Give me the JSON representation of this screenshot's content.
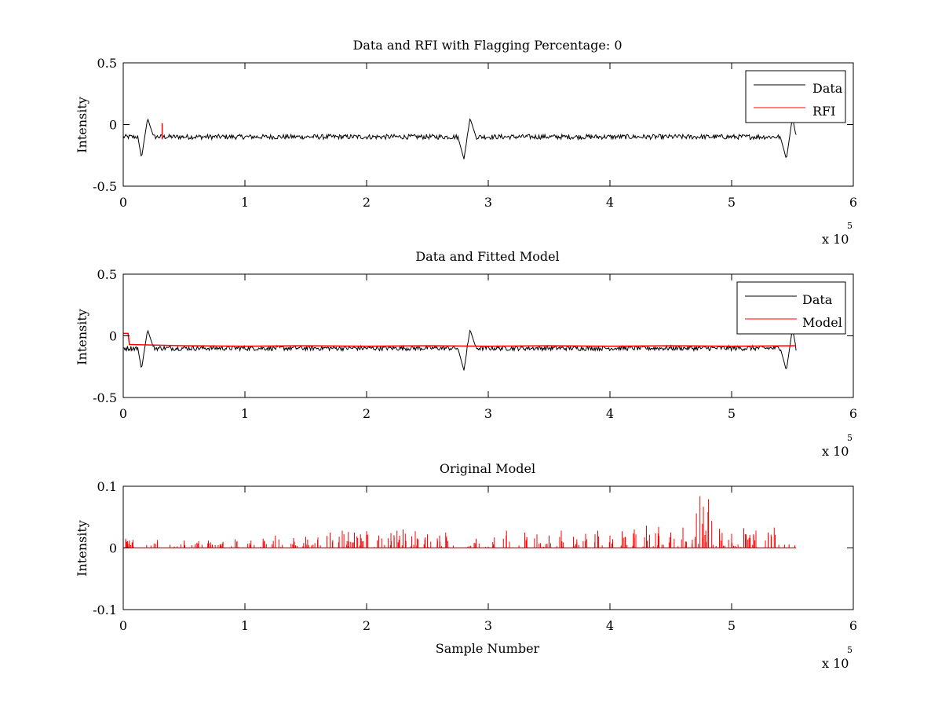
{
  "chart_data": [
    {
      "type": "line",
      "title": "Data and RFI with Flagging Percentage: 0",
      "xlabel": "",
      "ylabel": "Intensity",
      "xlim": [
        0,
        600000
      ],
      "ylim": [
        -0.5,
        0.5
      ],
      "x_ticks": [
        "0",
        "1",
        "2",
        "3",
        "4",
        "5",
        "6"
      ],
      "y_ticks": [
        "-0.5",
        "0",
        "0.5"
      ],
      "x_exponent": "x 10",
      "x_exponent_power": "5",
      "grid": false,
      "legend_position": "top-right",
      "legend": [
        {
          "name": "Data",
          "color": "#000000"
        },
        {
          "name": "RFI",
          "color": "#ff0000"
        }
      ],
      "series": [
        {
          "name": "Data",
          "color": "#000000",
          "baseline": -0.1,
          "noise_amplitude": 0.04,
          "x_end": 553000,
          "x": [
            0,
            12000,
            15000,
            20000,
            25000,
            275000,
            280000,
            285000,
            290000,
            540000,
            545000,
            550000,
            553000
          ],
          "y": [
            -0.1,
            -0.1,
            -0.27,
            0.05,
            -0.1,
            -0.1,
            -0.28,
            0.05,
            -0.1,
            -0.1,
            -0.28,
            0.06,
            -0.1
          ]
        },
        {
          "name": "RFI",
          "color": "#ff0000",
          "x": [
            32000,
            32000
          ],
          "y": [
            -0.12,
            0.01
          ]
        }
      ]
    },
    {
      "type": "line",
      "title": "Data and Fitted Model",
      "xlabel": "",
      "ylabel": "Intensity",
      "xlim": [
        0,
        600000
      ],
      "ylim": [
        -0.5,
        0.5
      ],
      "x_ticks": [
        "0",
        "1",
        "2",
        "3",
        "4",
        "5",
        "6"
      ],
      "y_ticks": [
        "-0.5",
        "0",
        "0.5"
      ],
      "x_exponent": "x 10",
      "x_exponent_power": "5",
      "grid": false,
      "legend_position": "top-right",
      "legend": [
        {
          "name": "Data",
          "color": "#000000"
        },
        {
          "name": "Model",
          "color": "#ff0000"
        }
      ],
      "series": [
        {
          "name": "Data",
          "color": "#000000",
          "baseline": -0.1,
          "noise_amplitude": 0.04,
          "x_end": 553000,
          "x": [
            0,
            12000,
            15000,
            20000,
            25000,
            275000,
            280000,
            285000,
            290000,
            540000,
            545000,
            550000,
            553000
          ],
          "y": [
            -0.1,
            -0.1,
            -0.27,
            0.05,
            -0.1,
            -0.1,
            -0.28,
            0.05,
            -0.1,
            -0.1,
            -0.28,
            0.06,
            -0.1
          ]
        },
        {
          "name": "Model",
          "color": "#ff0000",
          "x": [
            0,
            4000,
            5000,
            50000,
            100000,
            150000,
            200000,
            250000,
            300000,
            350000,
            400000,
            450000,
            500000,
            553000
          ],
          "y": [
            0.02,
            0.02,
            -0.07,
            -0.08,
            -0.085,
            -0.08,
            -0.085,
            -0.08,
            -0.085,
            -0.08,
            -0.085,
            -0.08,
            -0.085,
            -0.08
          ]
        }
      ]
    },
    {
      "type": "line",
      "title": "Original Model",
      "xlabel": "Sample Number",
      "ylabel": "Intensity",
      "xlim": [
        0,
        600000
      ],
      "ylim": [
        -0.1,
        0.1
      ],
      "x_ticks": [
        "0",
        "1",
        "2",
        "3",
        "4",
        "5",
        "6"
      ],
      "y_ticks": [
        "-0.1",
        "0",
        "0.1"
      ],
      "x_exponent": "x 10",
      "x_exponent_power": "5",
      "grid": false,
      "series": [
        {
          "name": "",
          "color": "#ff0000",
          "baseline": 0,
          "x_end": 553000,
          "spikes_x": [
            2000,
            5000,
            8000,
            28000,
            50000,
            62000,
            70000,
            82000,
            92000,
            105000,
            115000,
            125000,
            140000,
            150000,
            160000,
            170000,
            180000,
            185000,
            190000,
            195000,
            200000,
            210000,
            220000,
            225000,
            230000,
            240000,
            250000,
            260000,
            265000,
            290000,
            305000,
            315000,
            330000,
            340000,
            350000,
            360000,
            370000,
            380000,
            390000,
            400000,
            410000,
            420000,
            430000,
            440000,
            450000,
            460000,
            470000,
            474000,
            478000,
            481000,
            490000,
            500000,
            510000,
            515000,
            520000,
            530000,
            535000
          ],
          "spikes_y": [
            0.015,
            0.012,
            0.013,
            0.013,
            0.012,
            0.011,
            0.012,
            0.01,
            0.014,
            0.012,
            0.015,
            0.02,
            0.016,
            0.018,
            0.017,
            0.025,
            0.028,
            0.026,
            0.025,
            0.022,
            0.027,
            0.02,
            0.024,
            0.028,
            0.03,
            0.027,
            0.022,
            0.02,
            0.025,
            0.015,
            0.017,
            0.028,
            0.025,
            0.022,
            0.02,
            0.028,
            0.018,
            0.023,
            0.028,
            0.02,
            0.027,
            0.03,
            0.036,
            0.034,
            0.025,
            0.033,
            0.018,
            0.084,
            0.021,
            0.079,
            0.031,
            0.023,
            0.032,
            0.021,
            0.028,
            0.025,
            0.033
          ]
        }
      ]
    }
  ]
}
